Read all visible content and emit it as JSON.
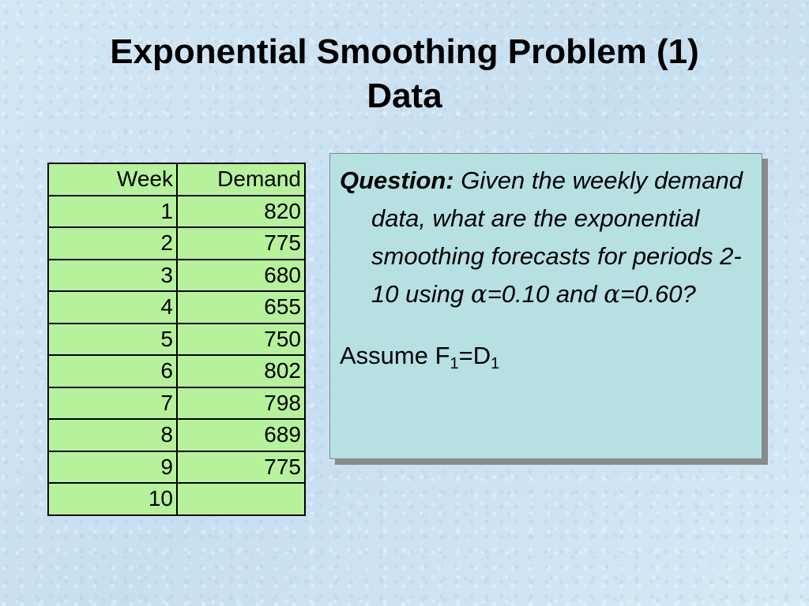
{
  "title": {
    "line1": "Exponential Smoothing Problem (1)",
    "line2": "Data"
  },
  "table": {
    "headers": [
      "Week",
      "Demand"
    ],
    "rows": [
      {
        "week": "1",
        "demand": "820"
      },
      {
        "week": "2",
        "demand": "775"
      },
      {
        "week": "3",
        "demand": "680"
      },
      {
        "week": "4",
        "demand": "655"
      },
      {
        "week": "5",
        "demand": "750"
      },
      {
        "week": "6",
        "demand": "802"
      },
      {
        "week": "7",
        "demand": "798"
      },
      {
        "week": "8",
        "demand": "689"
      },
      {
        "week": "9",
        "demand": "775"
      },
      {
        "week": "10",
        "demand": ""
      }
    ]
  },
  "question": {
    "label": "Question:",
    "text_part1": " Given the weekly demand data, what are the exponential smoothing forecasts for periods 2-10 using ",
    "alpha_symbol": "α",
    "text_part2": "=0.10 and ",
    "text_part3": "=0.60?",
    "assume_prefix": "Assume F",
    "assume_sub1": "1",
    "assume_mid": "=D",
    "assume_sub2": "1"
  },
  "colors": {
    "background": "#cfe4f3",
    "table_fill": "#b6f29c",
    "question_fill": "#b7e0e3",
    "shadow": "#8a8a8a"
  }
}
